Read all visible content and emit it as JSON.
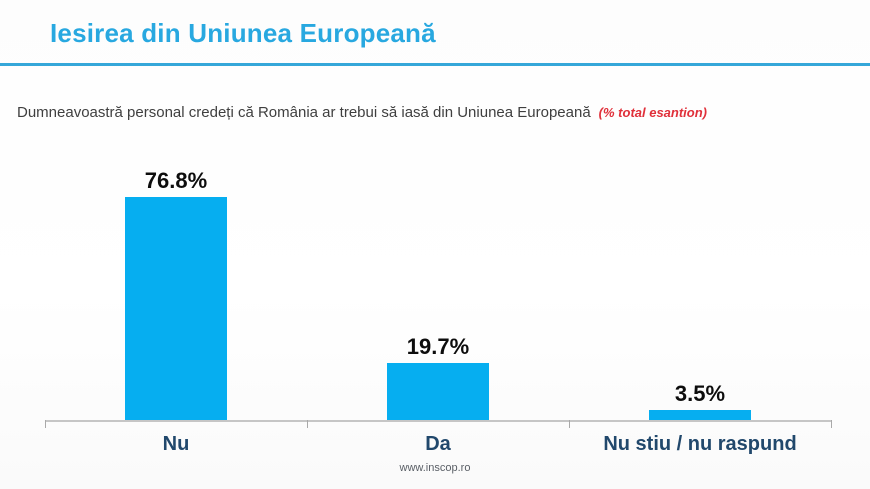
{
  "header": {
    "title": "Iesirea din Uniunea Europeană"
  },
  "subtitle": {
    "question": "Dumneavoastră personal credeți că România ar trebui să iasă din Uniunea Europeană",
    "note": "(% total esantion)"
  },
  "footer": {
    "website": "www.inscop.ro"
  },
  "colors": {
    "title": "#28A8E0",
    "title_rule": "#35A7D9",
    "question_text": "#3F3F3F",
    "note_red": "#E0303A",
    "bar": "#06AEF0",
    "value_label": "#0D0D0D",
    "category_label": "#21486C",
    "axis": "#C6C6C6",
    "footer_text": "#5A5F66"
  },
  "chart_data": {
    "type": "bar",
    "title": "Iesirea din Uniunea Europeană",
    "subtitle": "Dumneavoastră personal credeți că România ar trebui să iasă din Uniunea Europeană (% total esantion)",
    "categories": [
      "Nu",
      "Da",
      "Nu stiu / nu raspund"
    ],
    "values": [
      76.8,
      19.7,
      3.5
    ],
    "value_labels": [
      "76.8%",
      "19.7%",
      "3.5%"
    ],
    "xlabel": "",
    "ylabel": "",
    "ylim": [
      0,
      80
    ],
    "grid": false,
    "legend": false,
    "bar_color": "#06AEF0",
    "source": "www.inscop.ro"
  }
}
